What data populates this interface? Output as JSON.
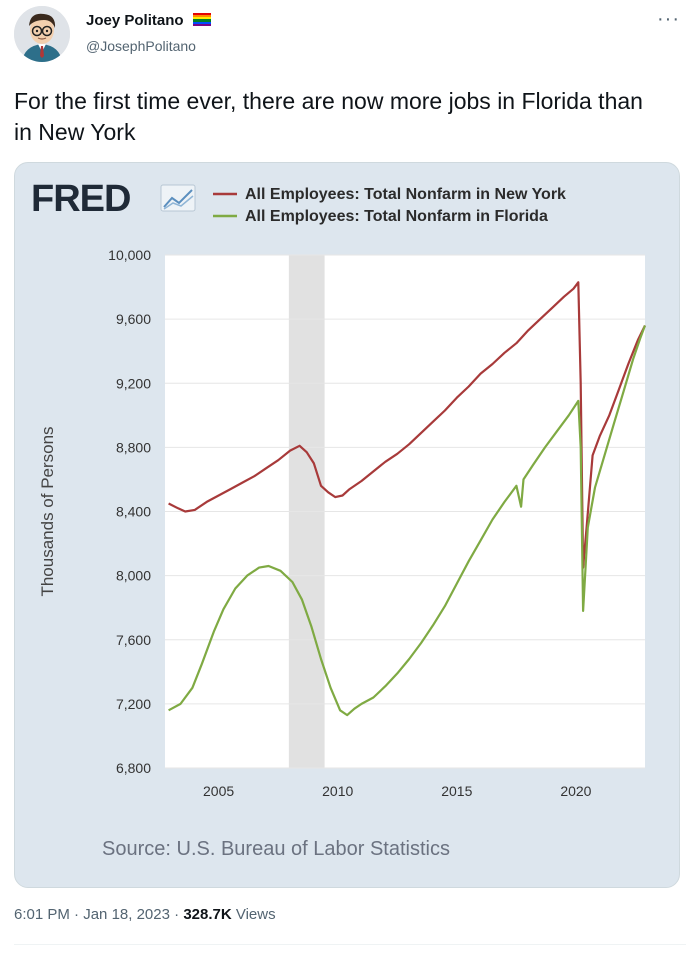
{
  "author": {
    "name": "Joey Politano",
    "handle": "@JosephPolitano"
  },
  "tweet": {
    "text": "For the first time ever, there are now more jobs in Florida than in New York",
    "time": "6:01 PM",
    "date": "Jan 18, 2023",
    "separator": "·",
    "views_count": "328.7K",
    "views_label": "Views"
  },
  "icons": {
    "more": "more-horizontal-icon",
    "pride_flag": "pride-flag-icon"
  },
  "chart_data": {
    "type": "line",
    "logo": "FRED",
    "source": "Source: U.S. Bureau of Labor Statistics",
    "ylabel": "Thousands of Persons",
    "ylim": [
      6800,
      10000
    ],
    "yticks": [
      6800,
      7200,
      7600,
      8000,
      8400,
      8800,
      9200,
      9600,
      10000
    ],
    "ytick_labels": [
      "6,800",
      "7,200",
      "7,600",
      "8,000",
      "8,400",
      "8,800",
      "9,200",
      "9,600",
      "10,000"
    ],
    "xlim": [
      2002.75,
      2022.9
    ],
    "xticks": [
      2005,
      2010,
      2015,
      2020
    ],
    "xtick_labels": [
      "2005",
      "2010",
      "2015",
      "2020"
    ],
    "recession": [
      2007.95,
      2009.45
    ],
    "grid": true,
    "legend_position": "top",
    "series": [
      {
        "name": "All Employees: Total Nonfarm in New York",
        "color": "#a83a3a",
        "points": [
          [
            2002.9,
            8450
          ],
          [
            2003.3,
            8420
          ],
          [
            2003.6,
            8400
          ],
          [
            2004,
            8410
          ],
          [
            2004.5,
            8460
          ],
          [
            2005,
            8500
          ],
          [
            2005.5,
            8540
          ],
          [
            2006,
            8580
          ],
          [
            2006.5,
            8620
          ],
          [
            2007,
            8670
          ],
          [
            2007.5,
            8720
          ],
          [
            2008,
            8780
          ],
          [
            2008.4,
            8810
          ],
          [
            2008.7,
            8770
          ],
          [
            2009,
            8700
          ],
          [
            2009.3,
            8560
          ],
          [
            2009.6,
            8520
          ],
          [
            2009.9,
            8490
          ],
          [
            2010.2,
            8500
          ],
          [
            2010.5,
            8540
          ],
          [
            2011,
            8590
          ],
          [
            2011.5,
            8650
          ],
          [
            2012,
            8710
          ],
          [
            2012.5,
            8760
          ],
          [
            2013,
            8820
          ],
          [
            2013.5,
            8890
          ],
          [
            2014,
            8960
          ],
          [
            2014.5,
            9030
          ],
          [
            2015,
            9110
          ],
          [
            2015.5,
            9180
          ],
          [
            2016,
            9260
          ],
          [
            2016.5,
            9320
          ],
          [
            2017,
            9390
          ],
          [
            2017.5,
            9450
          ],
          [
            2018,
            9530
          ],
          [
            2018.5,
            9600
          ],
          [
            2019,
            9670
          ],
          [
            2019.5,
            9740
          ],
          [
            2019.9,
            9790
          ],
          [
            2020.1,
            9830
          ],
          [
            2020.2,
            9200
          ],
          [
            2020.3,
            8050
          ],
          [
            2020.45,
            8300
          ],
          [
            2020.7,
            8750
          ],
          [
            2021,
            8870
          ],
          [
            2021.4,
            9000
          ],
          [
            2021.8,
            9160
          ],
          [
            2022.2,
            9320
          ],
          [
            2022.6,
            9470
          ],
          [
            2022.9,
            9560
          ]
        ]
      },
      {
        "name": "All Employees: Total Nonfarm in Florida",
        "color": "#7faa43",
        "points": [
          [
            2002.9,
            7160
          ],
          [
            2003.4,
            7200
          ],
          [
            2003.9,
            7300
          ],
          [
            2004.3,
            7450
          ],
          [
            2004.8,
            7650
          ],
          [
            2005.2,
            7790
          ],
          [
            2005.7,
            7920
          ],
          [
            2006.2,
            8000
          ],
          [
            2006.7,
            8050
          ],
          [
            2007.1,
            8060
          ],
          [
            2007.6,
            8030
          ],
          [
            2008.1,
            7960
          ],
          [
            2008.5,
            7850
          ],
          [
            2008.9,
            7680
          ],
          [
            2009.3,
            7480
          ],
          [
            2009.7,
            7300
          ],
          [
            2010.1,
            7160
          ],
          [
            2010.4,
            7130
          ],
          [
            2010.7,
            7170
          ],
          [
            2011,
            7200
          ],
          [
            2011.5,
            7240
          ],
          [
            2012,
            7310
          ],
          [
            2012.5,
            7390
          ],
          [
            2013,
            7480
          ],
          [
            2013.5,
            7580
          ],
          [
            2014,
            7690
          ],
          [
            2014.5,
            7810
          ],
          [
            2015,
            7950
          ],
          [
            2015.5,
            8090
          ],
          [
            2016,
            8220
          ],
          [
            2016.5,
            8350
          ],
          [
            2017,
            8460
          ],
          [
            2017.5,
            8560
          ],
          [
            2017.7,
            8430
          ],
          [
            2017.8,
            8600
          ],
          [
            2018.2,
            8690
          ],
          [
            2018.7,
            8800
          ],
          [
            2019.2,
            8900
          ],
          [
            2019.7,
            9000
          ],
          [
            2020.1,
            9090
          ],
          [
            2020.2,
            8800
          ],
          [
            2020.3,
            7780
          ],
          [
            2020.5,
            8300
          ],
          [
            2020.8,
            8550
          ],
          [
            2021.2,
            8750
          ],
          [
            2021.6,
            8950
          ],
          [
            2022,
            9150
          ],
          [
            2022.4,
            9350
          ],
          [
            2022.7,
            9480
          ],
          [
            2022.9,
            9560
          ]
        ]
      }
    ]
  }
}
